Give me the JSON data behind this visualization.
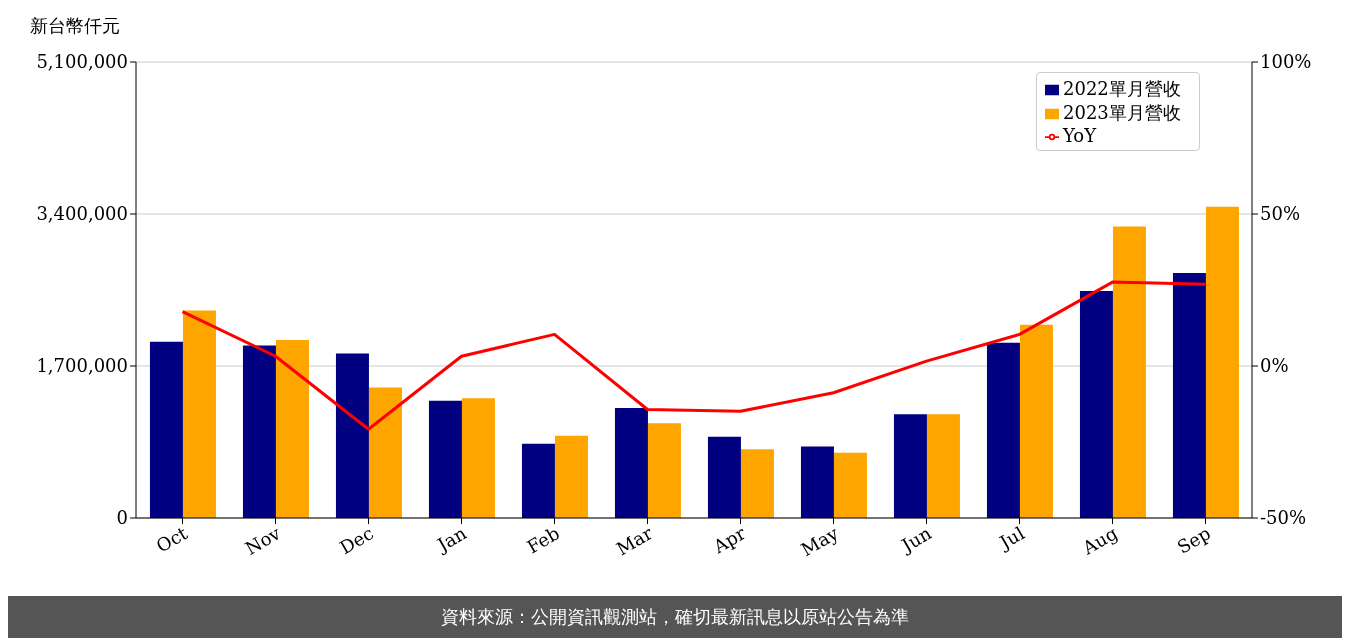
{
  "chart_data": {
    "type": "bar",
    "ylabel": "新台幣仟元",
    "categories": [
      "Oct",
      "Nov",
      "Dec",
      "Jan",
      "Feb",
      "Mar",
      "Apr",
      "May",
      "Jun",
      "Jul",
      "Aug",
      "Sep"
    ],
    "series": [
      {
        "name": "2022單月營收",
        "color": "#000080",
        "values": [
          1970000,
          1930000,
          1840000,
          1310000,
          830000,
          1230000,
          910000,
          800000,
          1160000,
          1960000,
          2540000,
          2740000
        ]
      },
      {
        "name": "2023單月營收",
        "color": "#ffa500",
        "values": [
          2320000,
          1990000,
          1460000,
          1340000,
          920000,
          1060000,
          770000,
          730000,
          1160000,
          2160000,
          3260000,
          3480000
        ]
      },
      {
        "name": "YoY",
        "type": "line",
        "axis": "y2",
        "color": "#ff0000",
        "values": [
          17.9,
          3.2,
          -20.8,
          3.2,
          10.4,
          -14.3,
          -14.9,
          -8.8,
          1.6,
          10.4,
          27.6,
          26.9
        ]
      }
    ],
    "ylim": [
      0,
      5100000
    ],
    "yticks": [
      {
        "value": 0,
        "label": "0"
      },
      {
        "value": 1700000,
        "label": "1,700,000"
      },
      {
        "value": 3400000,
        "label": "3,400,000"
      },
      {
        "value": 5100000,
        "label": "5,100,000"
      }
    ],
    "y2lim": [
      -50,
      100
    ],
    "y2ticks": [
      {
        "value": -50,
        "label": "-50%"
      },
      {
        "value": 0,
        "label": "0%"
      },
      {
        "value": 50,
        "label": "50%"
      },
      {
        "value": 100,
        "label": "100%"
      }
    ],
    "grid": "y",
    "legend": "top right",
    "marker": "none",
    "line_style": "solid",
    "annotations": [
      "資料來源：公開資訊觀測站，確切最新訊息以原站公告為準"
    ]
  }
}
